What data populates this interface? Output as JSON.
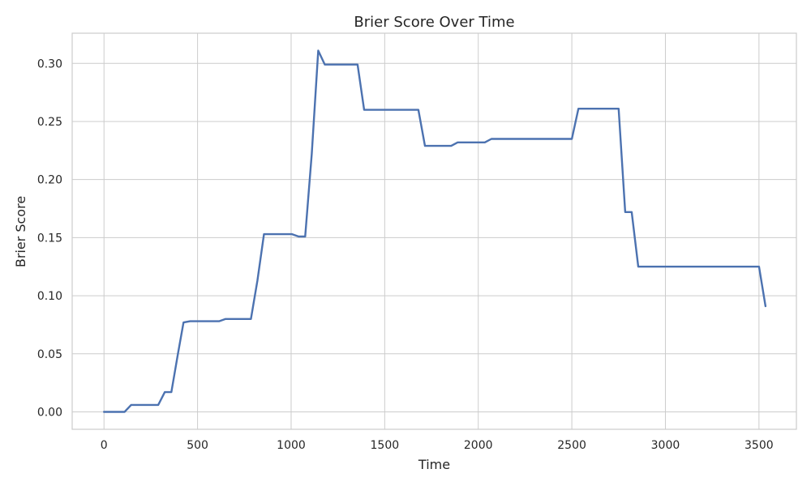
{
  "chart_data": {
    "type": "line",
    "title": "Brier Score Over Time",
    "xlabel": "Time",
    "ylabel": "Brier Score",
    "xlim": [
      -170,
      3700
    ],
    "ylim": [
      -0.015,
      0.326
    ],
    "xticks": [
      0,
      500,
      1000,
      1500,
      2000,
      2500,
      3000,
      3500
    ],
    "yticks": [
      0.0,
      0.05,
      0.1,
      0.15,
      0.2,
      0.25,
      0.3
    ],
    "ytick_labels": [
      "0.00",
      "0.05",
      "0.10",
      "0.15",
      "0.20",
      "0.25",
      "0.30"
    ],
    "grid": true,
    "series": [
      {
        "color": "#4c72b0",
        "x": [
          0,
          110,
          145,
          290,
          325,
          360,
          395,
          425,
          460,
          615,
          650,
          785,
          820,
          855,
          1005,
          1040,
          1075,
          1110,
          1145,
          1180,
          1355,
          1390,
          1680,
          1715,
          1855,
          1890,
          2035,
          2070,
          2500,
          2535,
          2750,
          2785,
          2820,
          2855,
          3500,
          3535
        ],
        "y": [
          0.0,
          0.0,
          0.006,
          0.006,
          0.017,
          0.017,
          0.05,
          0.077,
          0.078,
          0.078,
          0.08,
          0.08,
          0.113,
          0.153,
          0.153,
          0.151,
          0.151,
          0.222,
          0.311,
          0.299,
          0.299,
          0.26,
          0.26,
          0.229,
          0.229,
          0.232,
          0.232,
          0.235,
          0.235,
          0.261,
          0.261,
          0.172,
          0.172,
          0.125,
          0.125,
          0.091
        ]
      }
    ]
  }
}
